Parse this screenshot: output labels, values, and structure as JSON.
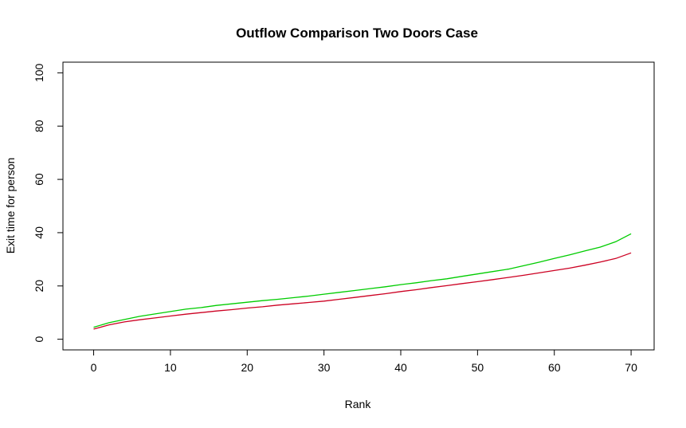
{
  "chart_data": {
    "type": "line",
    "title": "Outflow Comparison Two Doors Case",
    "xlabel": "Rank",
    "ylabel": "Exit time for person",
    "xlim": [
      -4,
      73
    ],
    "ylim": [
      -4,
      104
    ],
    "xticks": [
      0,
      10,
      20,
      30,
      40,
      50,
      60,
      70
    ],
    "yticks": [
      0,
      20,
      40,
      60,
      80,
      100
    ],
    "grid": false,
    "legend": "none",
    "series": [
      {
        "color": "#00CC00",
        "x": [
          0,
          2,
          4,
          6,
          8,
          10,
          12,
          14,
          16,
          18,
          20,
          22,
          24,
          26,
          28,
          30,
          32,
          34,
          36,
          38,
          40,
          42,
          44,
          46,
          48,
          50,
          52,
          54,
          56,
          58,
          60,
          62,
          64,
          66,
          68,
          70
        ],
        "y": [
          4.5,
          6.2,
          7.4,
          8.6,
          9.5,
          10.4,
          11.3,
          11.9,
          12.7,
          13.3,
          13.9,
          14.5,
          15.0,
          15.6,
          16.2,
          16.9,
          17.6,
          18.3,
          19.0,
          19.7,
          20.5,
          21.2,
          22.0,
          22.7,
          23.6,
          24.5,
          25.4,
          26.3,
          27.6,
          28.9,
          30.3,
          31.7,
          33.2,
          34.6,
          36.6,
          39.6
        ]
      },
      {
        "color": "#CC0022",
        "x": [
          0,
          2,
          4,
          6,
          8,
          10,
          12,
          14,
          16,
          18,
          20,
          22,
          24,
          26,
          28,
          30,
          32,
          34,
          36,
          38,
          40,
          42,
          44,
          46,
          48,
          50,
          52,
          54,
          56,
          58,
          60,
          62,
          64,
          66,
          68,
          70
        ],
        "y": [
          3.8,
          5.4,
          6.5,
          7.3,
          8.0,
          8.7,
          9.4,
          10.0,
          10.6,
          11.1,
          11.7,
          12.2,
          12.8,
          13.3,
          13.8,
          14.3,
          15.0,
          15.7,
          16.4,
          17.1,
          17.9,
          18.6,
          19.4,
          20.1,
          20.9,
          21.6,
          22.4,
          23.2,
          24.0,
          24.9,
          25.8,
          26.7,
          27.8,
          29.0,
          30.3,
          32.4
        ]
      }
    ]
  }
}
